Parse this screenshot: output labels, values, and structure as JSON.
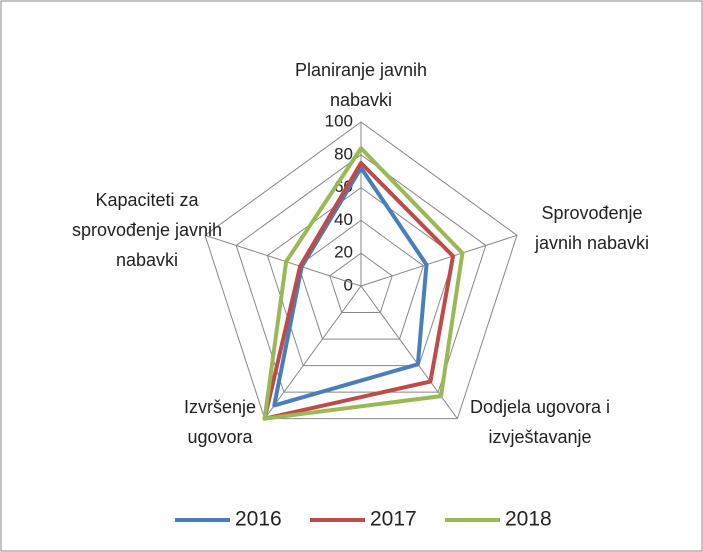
{
  "chart_data": {
    "type": "radar",
    "categories": [
      "Planiranje javnih nabavki",
      "Sprovođenje javnih nabavki",
      "Dodjela ugovora i izvještavanje",
      "Izvršenje ugovora",
      "Kapaciteti za sprovođenje javnih nabavki"
    ],
    "series": [
      {
        "name": "2016",
        "color": "#4a7ebb",
        "values": [
          72,
          42,
          59,
          90,
          38
        ]
      },
      {
        "name": "2017",
        "color": "#be4b48",
        "values": [
          75,
          59,
          72,
          100,
          39
        ]
      },
      {
        "name": "2018",
        "color": "#98b954",
        "values": [
          84,
          65,
          83,
          100,
          48
        ]
      }
    ],
    "ylim": [
      0,
      100
    ],
    "yticks": [
      0,
      20,
      40,
      60,
      80,
      100
    ],
    "grid": true,
    "legend": "bottom"
  }
}
